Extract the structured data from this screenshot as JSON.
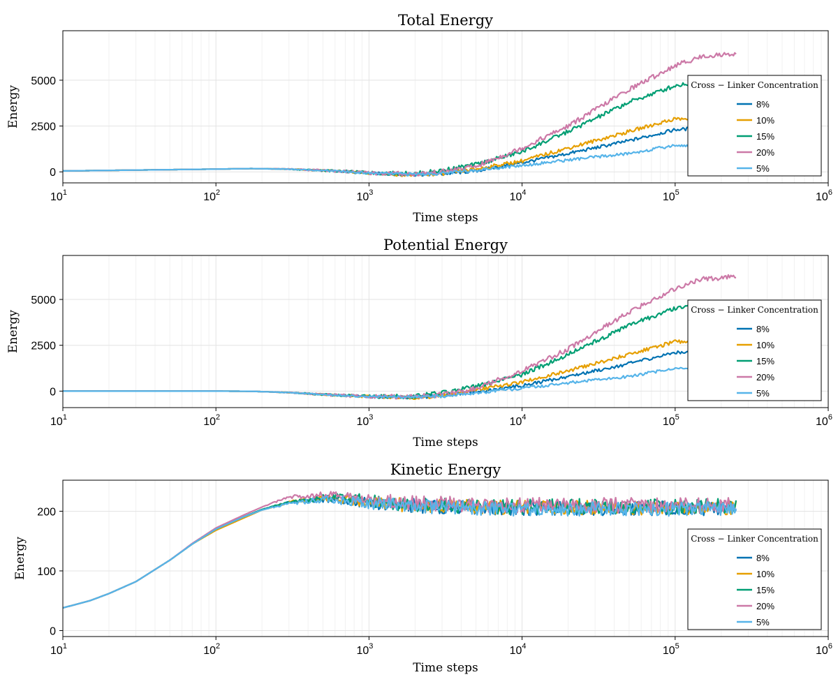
{
  "chart_data": [
    {
      "type": "line",
      "title": "Total Energy",
      "xlabel": "Time steps",
      "ylabel": "Energy",
      "xscale": "log",
      "xlim": [
        10,
        1000000
      ],
      "ylim": [
        -600,
        7700
      ],
      "yticks": [
        0,
        2500,
        5000
      ],
      "ytick_labels": [
        "0",
        "2500",
        "5000"
      ],
      "xticks": [
        10,
        100,
        1000,
        10000,
        100000,
        1000000
      ],
      "xtick_labels": [
        {
          "base": "10",
          "exp": "1"
        },
        {
          "base": "10",
          "exp": "2"
        },
        {
          "base": "10",
          "exp": "3"
        },
        {
          "base": "10",
          "exp": "4"
        },
        {
          "base": "10",
          "exp": "5"
        },
        {
          "base": "10",
          "exp": "6"
        }
      ],
      "grid": true,
      "legend": {
        "title": "Cross − Linker Concentration",
        "placement": "right"
      },
      "series": [
        {
          "name": "8%",
          "color": "#0072b2",
          "noise": 90,
          "x": [
            10,
            100,
            170,
            300,
            600,
            1000,
            2000,
            3000,
            5000,
            10000,
            20000,
            50000,
            100000,
            150000,
            250000
          ],
          "y": [
            50,
            150,
            180,
            150,
            50,
            -70,
            -150,
            -120,
            50,
            500,
            1000,
            1700,
            2300,
            2400,
            2450
          ]
        },
        {
          "name": "10%",
          "color": "#e69f00",
          "noise": 100,
          "x": [
            10,
            100,
            170,
            300,
            600,
            1000,
            2000,
            3000,
            5000,
            10000,
            20000,
            50000,
            100000,
            150000,
            250000
          ],
          "y": [
            50,
            150,
            180,
            150,
            50,
            -60,
            -180,
            -100,
            150,
            600,
            1300,
            2200,
            2900,
            2850,
            2950
          ]
        },
        {
          "name": "15%",
          "color": "#009e73",
          "noise": 120,
          "x": [
            10,
            100,
            170,
            300,
            600,
            1000,
            2000,
            3000,
            5000,
            10000,
            20000,
            50000,
            100000,
            150000,
            250000
          ],
          "y": [
            50,
            150,
            180,
            150,
            50,
            -60,
            -100,
            80,
            400,
            1100,
            2200,
            3800,
            4700,
            4950,
            4950
          ]
        },
        {
          "name": "20%",
          "color": "#cc79a7",
          "noise": 130,
          "x": [
            10,
            100,
            170,
            300,
            600,
            1000,
            2000,
            3000,
            5000,
            10000,
            20000,
            50000,
            100000,
            150000,
            250000
          ],
          "y": [
            50,
            150,
            180,
            150,
            50,
            -60,
            -120,
            0,
            300,
            1300,
            2500,
            4500,
            5800,
            6300,
            6450
          ]
        },
        {
          "name": "5%",
          "color": "#56b4e9",
          "noise": 80,
          "x": [
            10,
            100,
            170,
            300,
            600,
            1000,
            2000,
            3000,
            5000,
            10000,
            20000,
            50000,
            100000,
            150000,
            250000
          ],
          "y": [
            50,
            150,
            180,
            150,
            50,
            -70,
            -130,
            -90,
            100,
            350,
            650,
            1000,
            1450,
            1400,
            1350
          ]
        }
      ]
    },
    {
      "type": "line",
      "title": "Potential Energy",
      "xlabel": "Time steps",
      "ylabel": "Energy",
      "xscale": "log",
      "xlim": [
        10,
        1000000
      ],
      "ylim": [
        -900,
        7400
      ],
      "yticks": [
        0,
        2500,
        5000
      ],
      "ytick_labels": [
        "0",
        "2500",
        "5000"
      ],
      "xticks": [
        10,
        100,
        1000,
        10000,
        100000,
        1000000
      ],
      "xtick_labels": [
        {
          "base": "10",
          "exp": "1"
        },
        {
          "base": "10",
          "exp": "2"
        },
        {
          "base": "10",
          "exp": "3"
        },
        {
          "base": "10",
          "exp": "4"
        },
        {
          "base": "10",
          "exp": "5"
        },
        {
          "base": "10",
          "exp": "6"
        }
      ],
      "grid": true,
      "legend": {
        "title": "Cross − Linker Concentration",
        "placement": "right"
      },
      "series": [
        {
          "name": "8%",
          "color": "#0072b2",
          "noise": 90,
          "x": [
            10,
            100,
            170,
            300,
            600,
            1000,
            2000,
            3000,
            5000,
            10000,
            20000,
            50000,
            100000,
            150000,
            250000
          ],
          "y": [
            0,
            0,
            -10,
            -80,
            -220,
            -300,
            -330,
            -250,
            -50,
            300,
            800,
            1500,
            2100,
            2200,
            2250
          ]
        },
        {
          "name": "10%",
          "color": "#e69f00",
          "noise": 100,
          "x": [
            10,
            100,
            170,
            300,
            600,
            1000,
            2000,
            3000,
            5000,
            10000,
            20000,
            50000,
            100000,
            150000,
            250000
          ],
          "y": [
            0,
            0,
            -10,
            -80,
            -220,
            -300,
            -360,
            -250,
            50,
            500,
            1100,
            2000,
            2700,
            2700,
            2700
          ]
        },
        {
          "name": "15%",
          "color": "#009e73",
          "noise": 120,
          "x": [
            10,
            100,
            170,
            300,
            600,
            1000,
            2000,
            3000,
            5000,
            10000,
            20000,
            50000,
            100000,
            150000,
            250000
          ],
          "y": [
            0,
            0,
            -10,
            -80,
            -220,
            -300,
            -280,
            -100,
            250,
            900,
            2000,
            3600,
            4500,
            4700,
            4700
          ]
        },
        {
          "name": "20%",
          "color": "#cc79a7",
          "noise": 130,
          "x": [
            10,
            100,
            170,
            300,
            600,
            1000,
            2000,
            3000,
            5000,
            10000,
            20000,
            50000,
            100000,
            150000,
            250000
          ],
          "y": [
            0,
            0,
            -10,
            -80,
            -220,
            -300,
            -300,
            -200,
            150,
            1100,
            2300,
            4300,
            5600,
            6100,
            6250
          ]
        },
        {
          "name": "5%",
          "color": "#56b4e9",
          "noise": 80,
          "x": [
            10,
            100,
            170,
            300,
            600,
            1000,
            2000,
            3000,
            5000,
            10000,
            20000,
            50000,
            100000,
            150000,
            250000
          ],
          "y": [
            0,
            0,
            -10,
            -80,
            -220,
            -300,
            -320,
            -280,
            -100,
            150,
            450,
            800,
            1250,
            1200,
            1150
          ]
        }
      ]
    },
    {
      "type": "line",
      "title": "Kinetic Energy",
      "xlabel": "Time steps",
      "ylabel": "Energy",
      "xscale": "log",
      "xlim": [
        10,
        1000000
      ],
      "ylim": [
        -10,
        252
      ],
      "yticks": [
        0,
        100,
        200
      ],
      "ytick_labels": [
        "0",
        "100",
        "200"
      ],
      "xticks": [
        10,
        100,
        1000,
        10000,
        100000,
        1000000
      ],
      "xtick_labels": [
        {
          "base": "10",
          "exp": "1"
        },
        {
          "base": "10",
          "exp": "2"
        },
        {
          "base": "10",
          "exp": "3"
        },
        {
          "base": "10",
          "exp": "4"
        },
        {
          "base": "10",
          "exp": "5"
        },
        {
          "base": "10",
          "exp": "6"
        }
      ],
      "grid": true,
      "legend": {
        "title": "Cross − Linker Concentration",
        "placement": "right"
      },
      "series": [
        {
          "name": "8%",
          "color": "#0072b2",
          "noise": 12,
          "x": [
            10,
            15,
            20,
            30,
            50,
            70,
            100,
            150,
            200,
            300,
            500,
            700,
            1000,
            2000,
            5000,
            10000,
            30000,
            100000,
            250000
          ],
          "y": [
            38,
            50,
            62,
            82,
            118,
            145,
            170,
            190,
            203,
            215,
            220,
            218,
            214,
            209,
            206,
            205,
            205,
            205,
            205
          ]
        },
        {
          "name": "10%",
          "color": "#e69f00",
          "noise": 12,
          "x": [
            10,
            15,
            20,
            30,
            50,
            70,
            100,
            150,
            200,
            300,
            500,
            700,
            1000,
            2000,
            5000,
            10000,
            30000,
            100000,
            250000
          ],
          "y": [
            38,
            50,
            62,
            82,
            118,
            145,
            168,
            188,
            202,
            215,
            222,
            220,
            215,
            210,
            207,
            206,
            206,
            206,
            206
          ]
        },
        {
          "name": "15%",
          "color": "#009e73",
          "noise": 13,
          "x": [
            10,
            15,
            20,
            30,
            50,
            70,
            100,
            150,
            200,
            300,
            500,
            700,
            1000,
            2000,
            5000,
            10000,
            30000,
            100000,
            250000
          ],
          "y": [
            38,
            50,
            62,
            82,
            118,
            145,
            170,
            190,
            203,
            215,
            222,
            224,
            218,
            212,
            209,
            208,
            208,
            208,
            208
          ]
        },
        {
          "name": "20%",
          "color": "#cc79a7",
          "noise": 13,
          "x": [
            10,
            15,
            20,
            30,
            50,
            70,
            100,
            150,
            200,
            300,
            500,
            700,
            1000,
            2000,
            5000,
            10000,
            30000,
            100000,
            250000
          ],
          "y": [
            38,
            50,
            62,
            82,
            118,
            146,
            172,
            193,
            207,
            224,
            228,
            224,
            219,
            214,
            211,
            210,
            210,
            210,
            210
          ]
        },
        {
          "name": "5%",
          "color": "#56b4e9",
          "noise": 12,
          "x": [
            10,
            15,
            20,
            30,
            50,
            70,
            100,
            150,
            200,
            300,
            500,
            700,
            1000,
            2000,
            5000,
            10000,
            30000,
            100000,
            250000
          ],
          "y": [
            38,
            50,
            62,
            82,
            118,
            145,
            170,
            190,
            202,
            213,
            220,
            218,
            213,
            208,
            205,
            204,
            204,
            204,
            204
          ]
        }
      ]
    }
  ]
}
